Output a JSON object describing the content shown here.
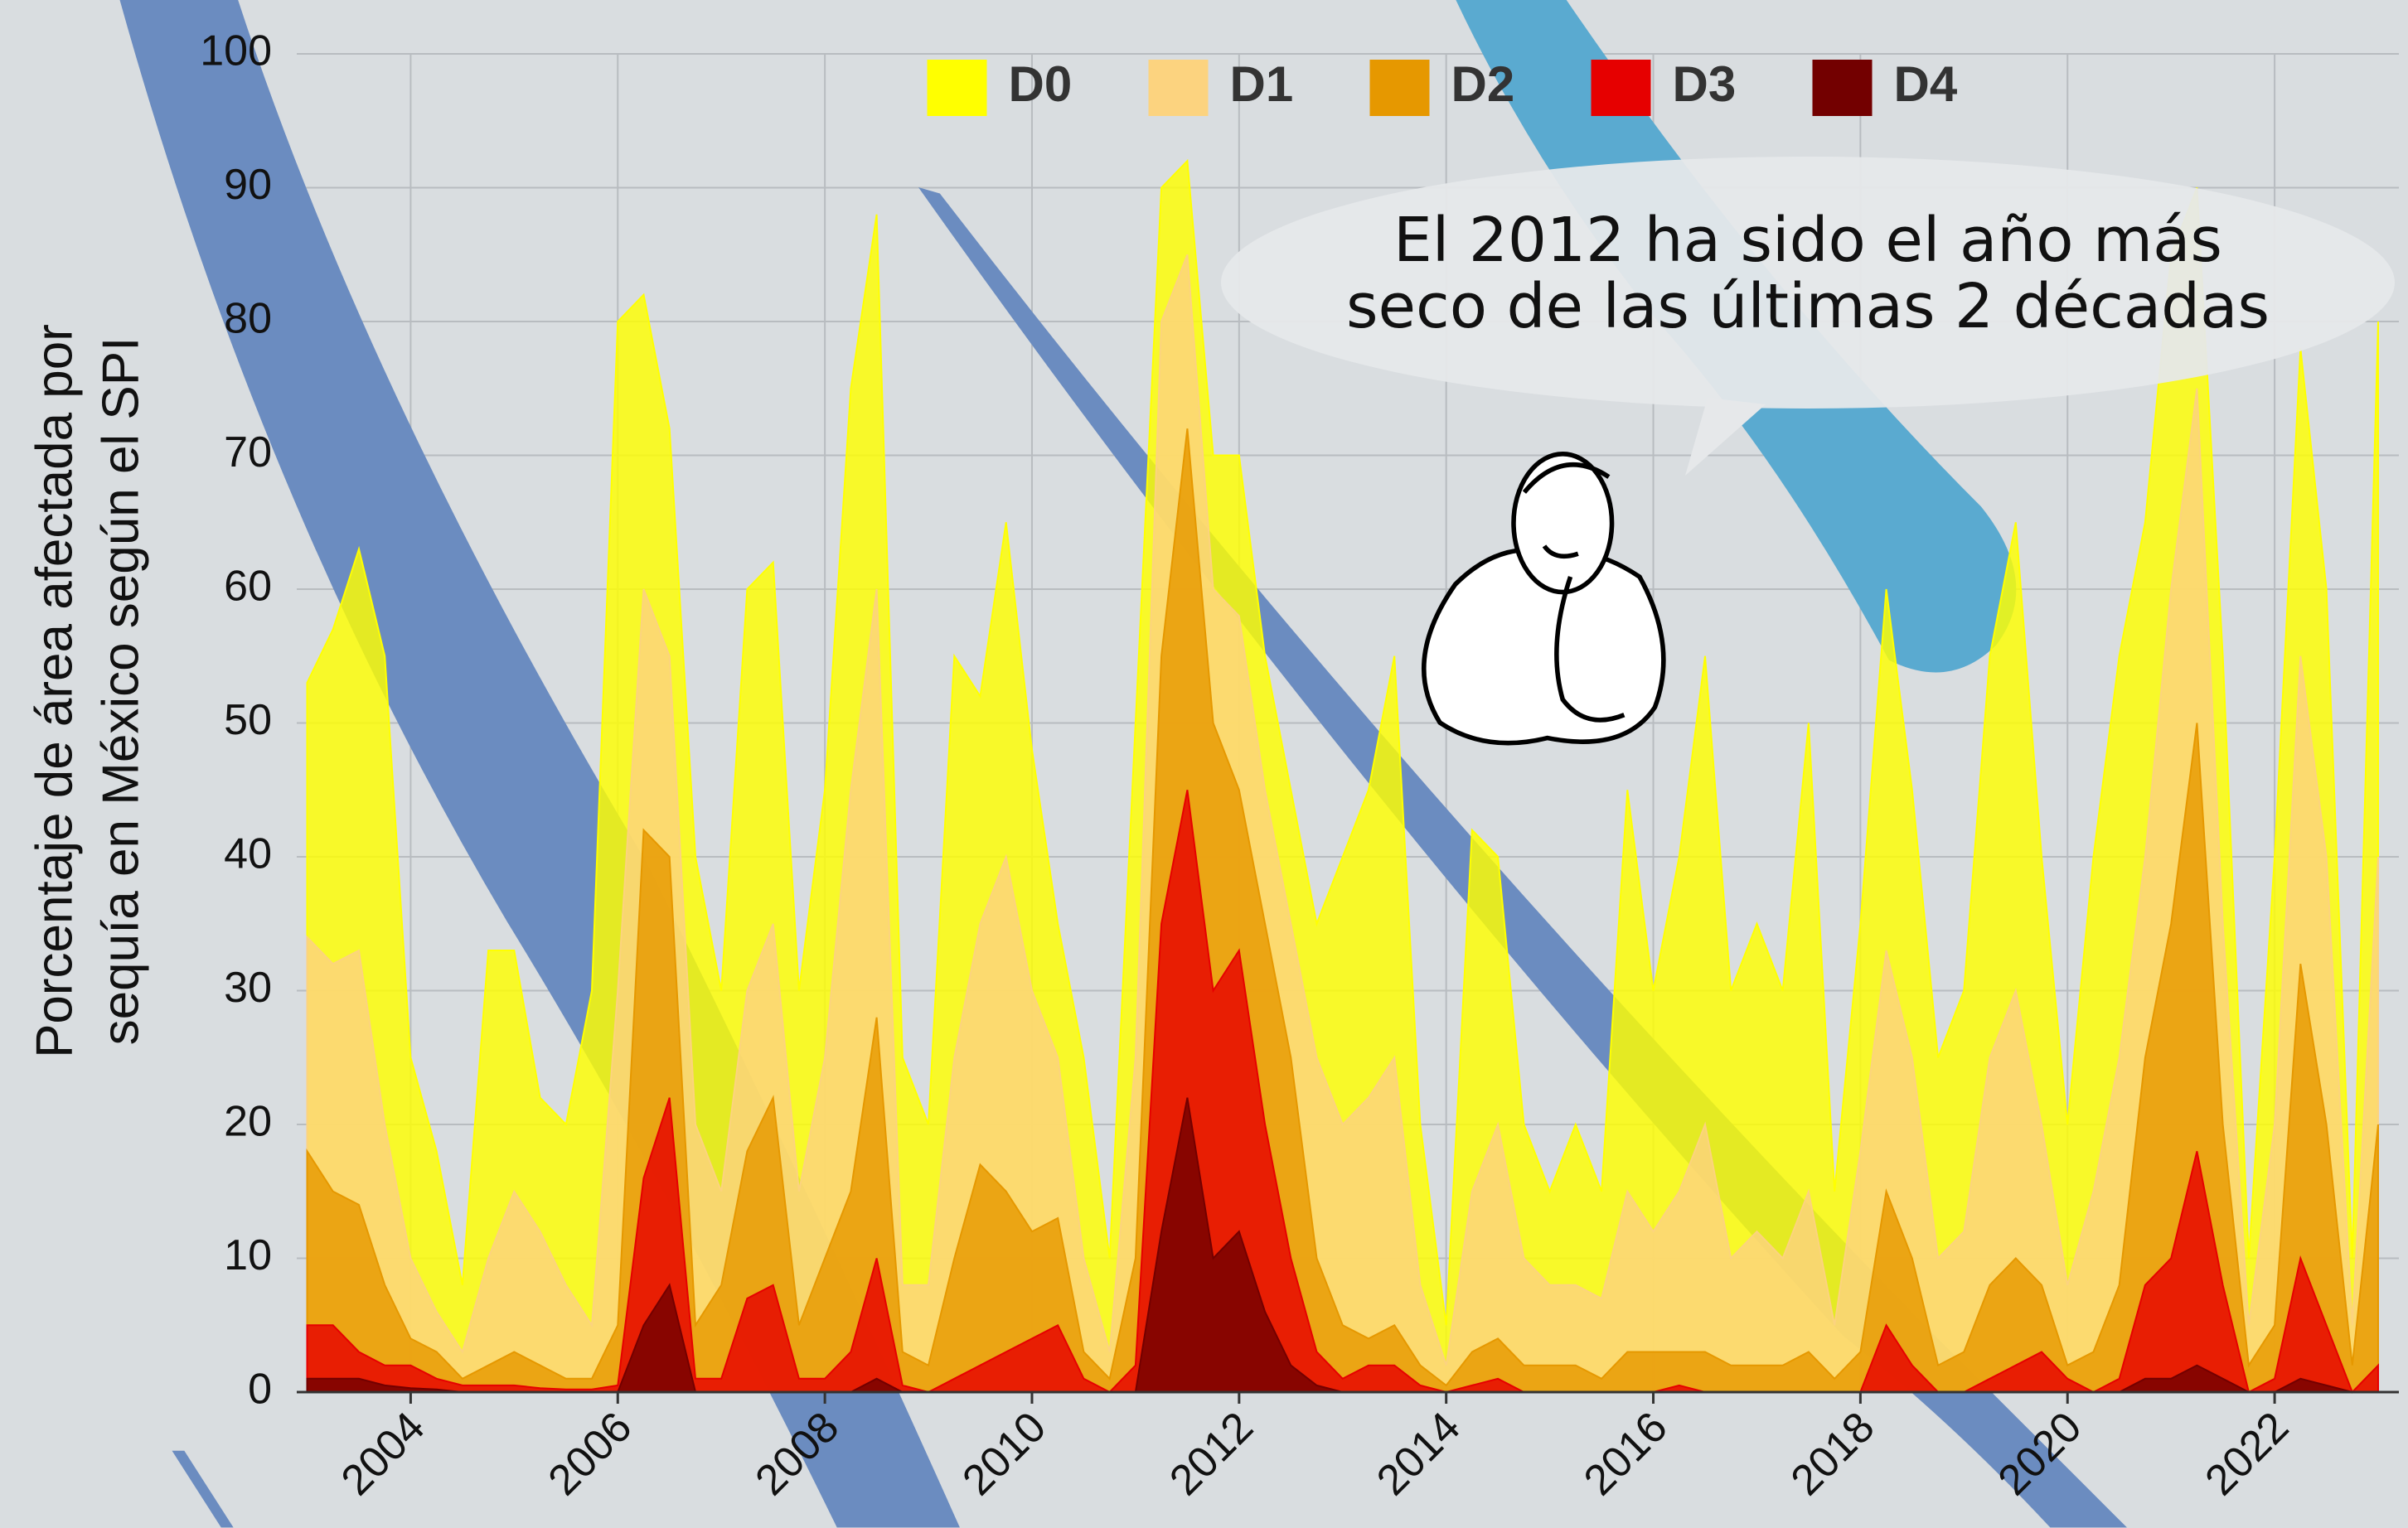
{
  "chart_data": {
    "type": "area",
    "ylabel": [
      "Porcentaje de área afectada por",
      "sequía en México según el SPI"
    ],
    "annotation": [
      "El 2012 ha sido el año más",
      "seco de las últimas 2 décadas"
    ],
    "legend": "top",
    "grid": true,
    "xlim": [
      2002.9,
      2023.2
    ],
    "xticks": [
      2004,
      2006,
      2008,
      2010,
      2012,
      2014,
      2016,
      2018,
      2020,
      2022
    ],
    "ylim": [
      0,
      100
    ],
    "yticks": [
      0,
      10,
      20,
      30,
      40,
      50,
      60,
      70,
      80,
      90,
      100
    ],
    "x": [
      2003,
      2003.25,
      2003.5,
      2003.75,
      2004,
      2004.25,
      2004.5,
      2004.75,
      2005,
      2005.25,
      2005.5,
      2005.75,
      2006,
      2006.25,
      2006.5,
      2006.75,
      2007,
      2007.25,
      2007.5,
      2007.75,
      2008,
      2008.25,
      2008.5,
      2008.75,
      2009,
      2009.25,
      2009.5,
      2009.75,
      2010,
      2010.25,
      2010.5,
      2010.75,
      2011,
      2011.25,
      2011.5,
      2011.75,
      2012,
      2012.25,
      2012.5,
      2012.75,
      2013,
      2013.25,
      2013.5,
      2013.75,
      2014,
      2014.25,
      2014.5,
      2014.75,
      2015,
      2015.25,
      2015.5,
      2015.75,
      2016,
      2016.25,
      2016.5,
      2016.75,
      2017,
      2017.25,
      2017.5,
      2017.75,
      2018,
      2018.25,
      2018.5,
      2018.75,
      2019,
      2019.25,
      2019.5,
      2019.75,
      2020,
      2020.25,
      2020.5,
      2020.75,
      2021,
      2021.25,
      2021.5,
      2021.75,
      2022,
      2022.25,
      2022.5,
      2022.75,
      2023
    ],
    "series": [
      {
        "name": "D0",
        "color": "#ffff00",
        "values": [
          53,
          57,
          63,
          55,
          25,
          18,
          8,
          33,
          33,
          22,
          20,
          30,
          80,
          82,
          72,
          40,
          30,
          60,
          62,
          30,
          45,
          75,
          88,
          25,
          20,
          55,
          52,
          65,
          48,
          35,
          25,
          10,
          50,
          90,
          92,
          70,
          70,
          55,
          45,
          35,
          40,
          45,
          55,
          20,
          5,
          42,
          40,
          20,
          15,
          20,
          15,
          45,
          30,
          40,
          55,
          30,
          35,
          30,
          50,
          15,
          35,
          60,
          45,
          25,
          30,
          55,
          65,
          40,
          20,
          40,
          55,
          65,
          85,
          90,
          55,
          10,
          40,
          78,
          60,
          10,
          80
        ]
      },
      {
        "name": "D1",
        "color": "#fcd37f",
        "values": [
          34,
          32,
          33,
          20,
          10,
          6,
          3,
          10,
          15,
          12,
          8,
          5,
          30,
          60,
          55,
          20,
          15,
          30,
          35,
          15,
          25,
          45,
          60,
          8,
          8,
          25,
          35,
          40,
          30,
          25,
          10,
          3,
          25,
          80,
          85,
          60,
          58,
          45,
          35,
          25,
          20,
          22,
          25,
          8,
          2,
          15,
          20,
          10,
          8,
          8,
          7,
          15,
          12,
          15,
          20,
          10,
          12,
          10,
          15,
          5,
          18,
          33,
          25,
          10,
          12,
          25,
          30,
          20,
          8,
          15,
          25,
          40,
          60,
          75,
          35,
          5,
          20,
          55,
          40,
          5,
          40
        ]
      },
      {
        "name": "D2",
        "color": "#e69800",
        "values": [
          18,
          15,
          14,
          8,
          4,
          3,
          1,
          2,
          3,
          2,
          1,
          1,
          5,
          42,
          40,
          5,
          8,
          18,
          22,
          5,
          10,
          15,
          28,
          3,
          2,
          10,
          17,
          15,
          12,
          13,
          3,
          1,
          10,
          55,
          72,
          50,
          45,
          35,
          25,
          10,
          5,
          4,
          5,
          2,
          0.5,
          3,
          4,
          2,
          2,
          2,
          1,
          3,
          3,
          3,
          3,
          2,
          2,
          2,
          3,
          1,
          3,
          15,
          10,
          2,
          3,
          8,
          10,
          8,
          2,
          3,
          8,
          25,
          35,
          50,
          20,
          2,
          5,
          32,
          20,
          2,
          20
        ]
      },
      {
        "name": "D3",
        "color": "#e60000",
        "values": [
          5,
          5,
          3,
          2,
          2,
          1,
          0.5,
          0.5,
          0.5,
          0.3,
          0.2,
          0.2,
          0.5,
          16,
          22,
          1,
          1,
          7,
          8,
          1,
          1,
          3,
          10,
          0.5,
          0,
          1,
          2,
          3,
          4,
          5,
          1,
          0,
          2,
          35,
          45,
          30,
          33,
          20,
          10,
          3,
          1,
          2,
          2,
          0.5,
          0,
          0.5,
          1,
          0,
          0,
          0,
          0,
          0,
          0,
          0.5,
          0,
          0,
          0,
          0,
          0,
          0,
          0,
          5,
          2,
          0,
          0,
          1,
          2,
          3,
          1,
          0,
          1,
          8,
          10,
          18,
          8,
          0,
          1,
          10,
          5,
          0,
          2
        ]
      },
      {
        "name": "D4",
        "color": "#730000",
        "values": [
          1,
          1,
          1,
          0.5,
          0.3,
          0.2,
          0,
          0,
          0,
          0,
          0,
          0,
          0,
          5,
          8,
          0,
          0,
          0,
          0,
          0,
          0,
          0,
          1,
          0,
          0,
          0,
          0,
          0,
          0,
          0,
          0,
          0,
          0,
          12,
          22,
          10,
          12,
          6,
          2,
          0.5,
          0,
          0,
          0,
          0,
          0,
          0,
          0,
          0,
          0,
          0,
          0,
          0,
          0,
          0,
          0,
          0,
          0,
          0,
          0,
          0,
          0,
          0,
          0,
          0,
          0,
          0,
          0,
          0,
          0,
          0,
          0,
          1,
          1,
          2,
          1,
          0,
          0,
          1,
          0.5,
          0,
          0
        ]
      }
    ]
  }
}
